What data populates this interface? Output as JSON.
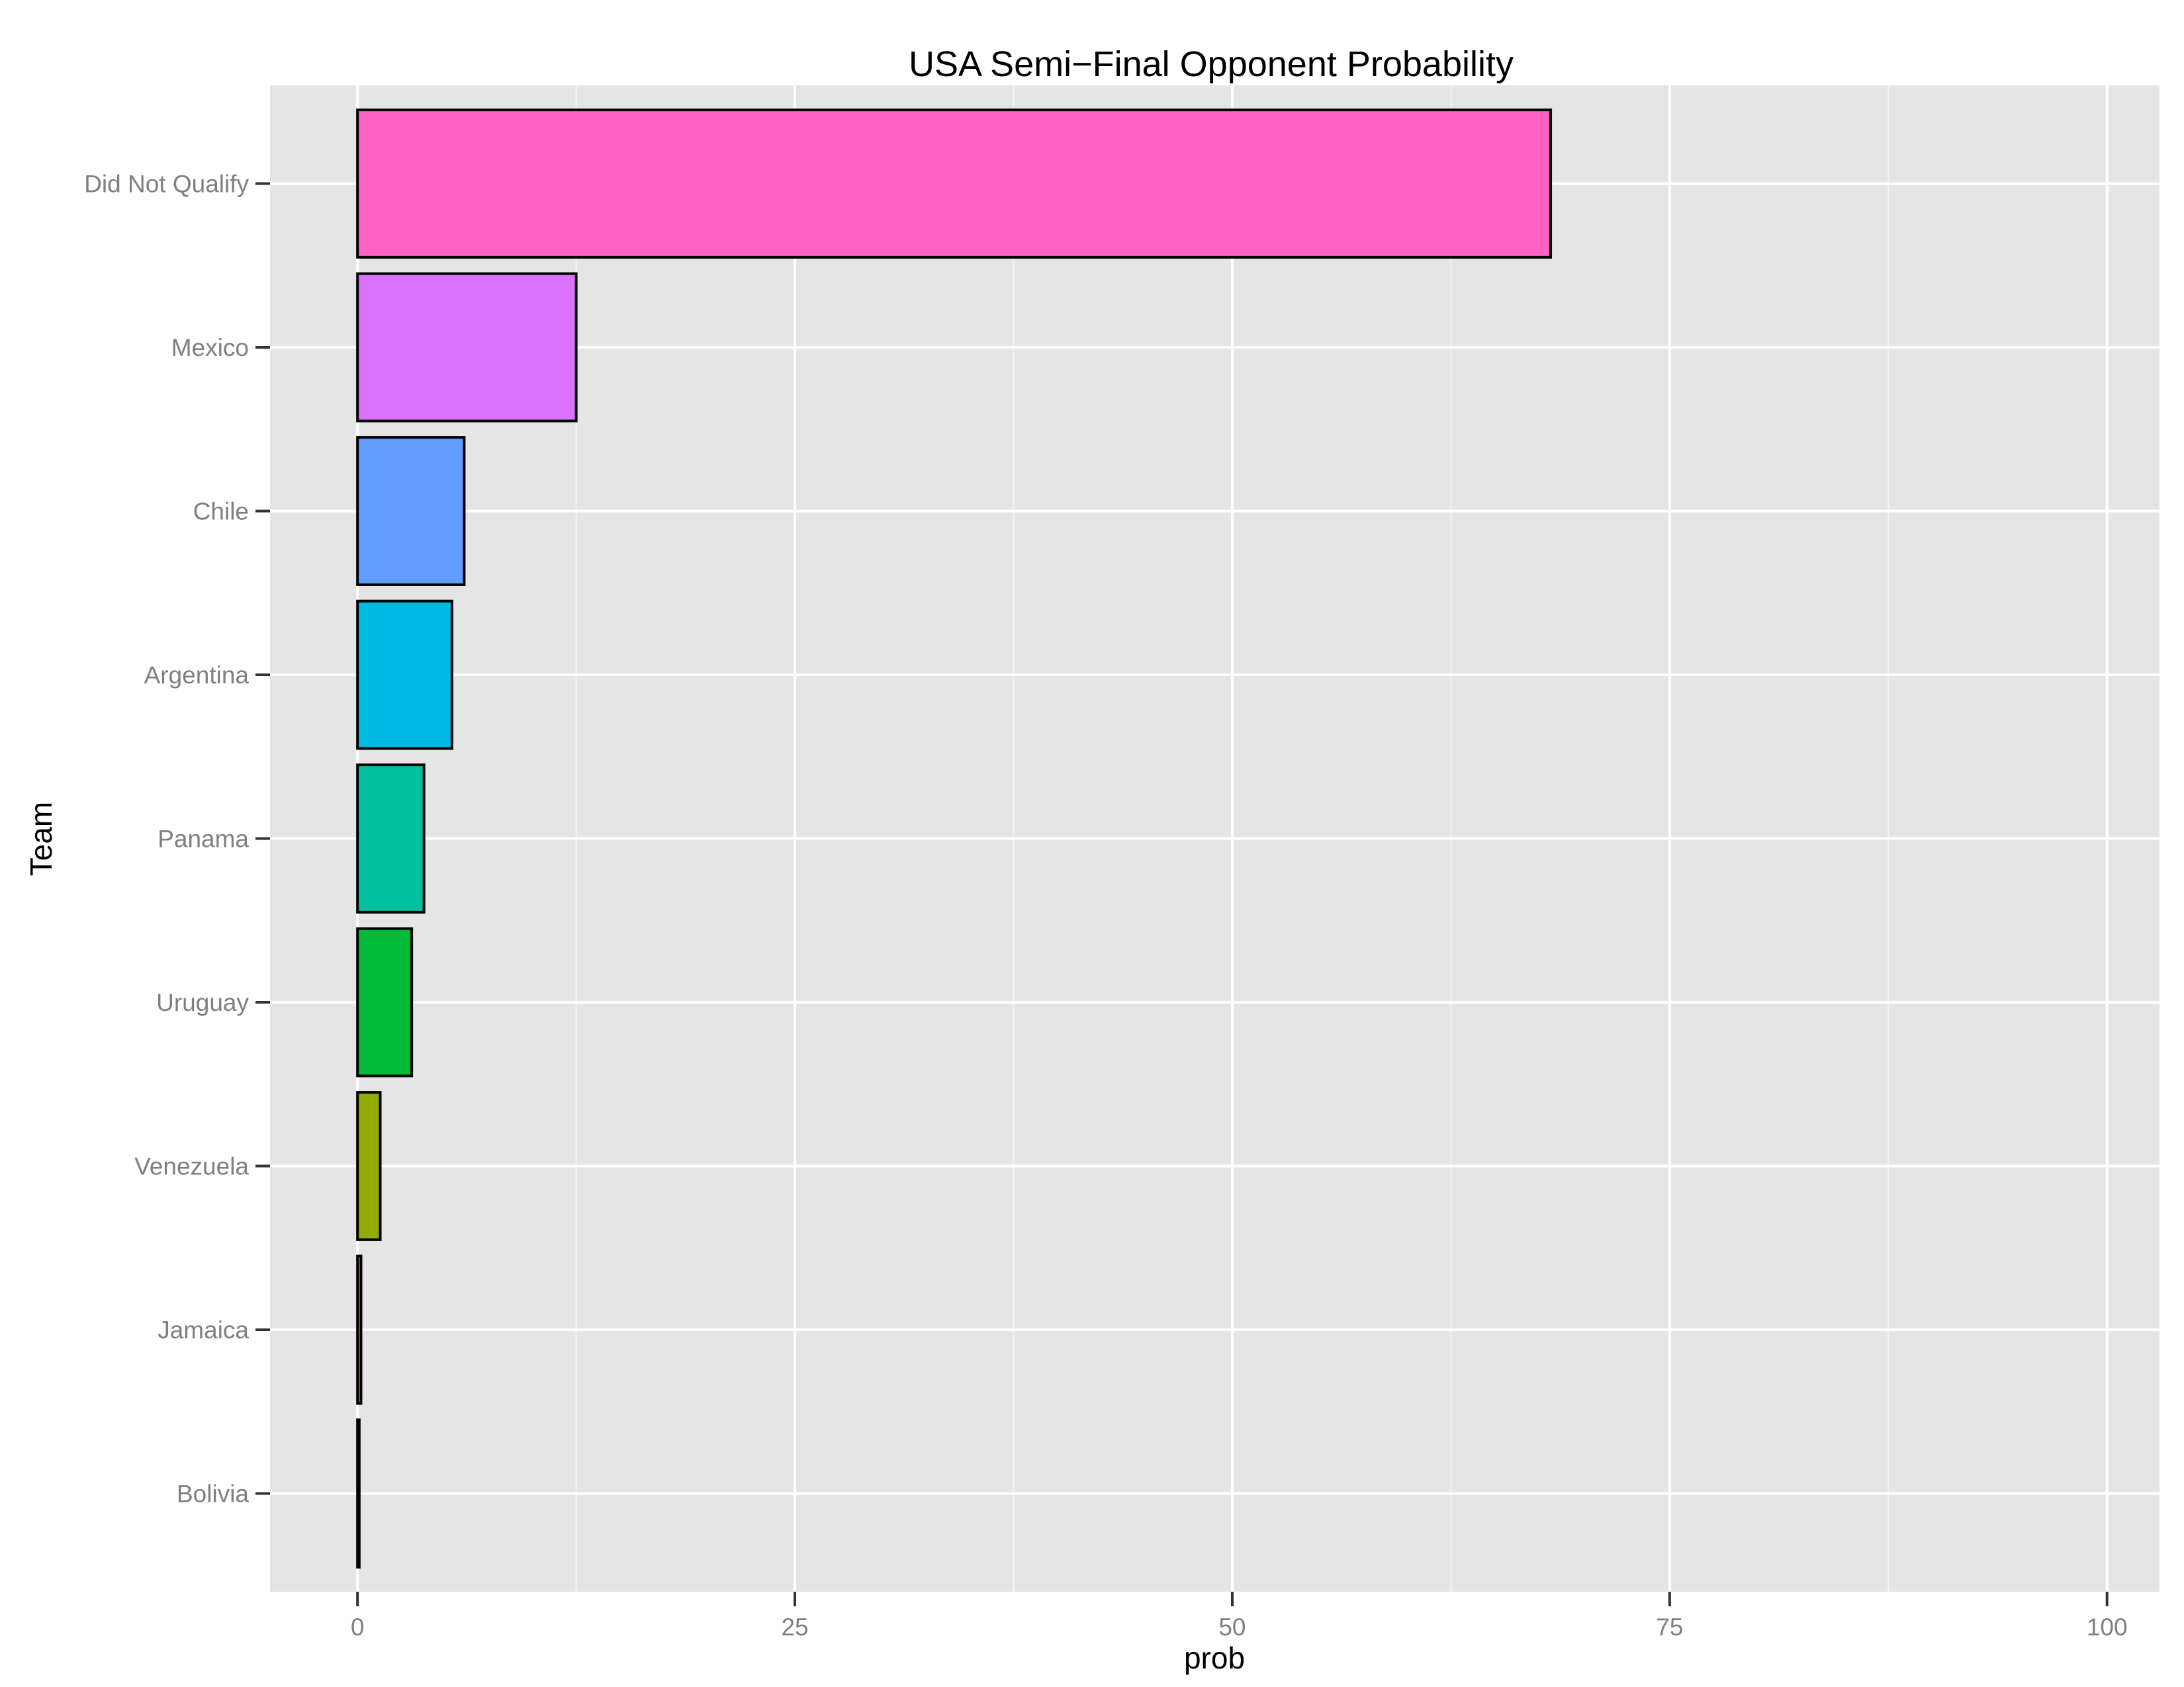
{
  "chart_data": {
    "type": "bar",
    "orientation": "horizontal",
    "title": "USA Semi−Final Opponent Probability",
    "xlabel": "prob",
    "ylabel": "Team",
    "xlim": [
      -5,
      103
    ],
    "x_ticks": [
      0,
      25,
      50,
      75,
      100
    ],
    "x_tick_labels": [
      "0",
      "25",
      "50",
      "75",
      "100"
    ],
    "grid": true,
    "legend": "none",
    "colors": {
      "panel_background": "#e5e5e5",
      "grid_major": "#ffffff",
      "grid_minor": "#f2f2f2",
      "bar_outline": "#000000",
      "tick_label": "#7f7f7f"
    },
    "categories": [
      "Did Not Qualify",
      "Mexico",
      "Chile",
      "Argentina",
      "Panama",
      "Uruguay",
      "Venezuela",
      "Jamaica",
      "Bolivia"
    ],
    "values": [
      68.2,
      12.5,
      6.1,
      5.4,
      3.8,
      3.1,
      1.3,
      0.2,
      0.1
    ],
    "bar_colors": [
      "#ff61c3",
      "#db72fb",
      "#619cff",
      "#00b9e3",
      "#00c19f",
      "#00ba38",
      "#93aa00",
      "#d39200",
      "#f8766d"
    ]
  }
}
